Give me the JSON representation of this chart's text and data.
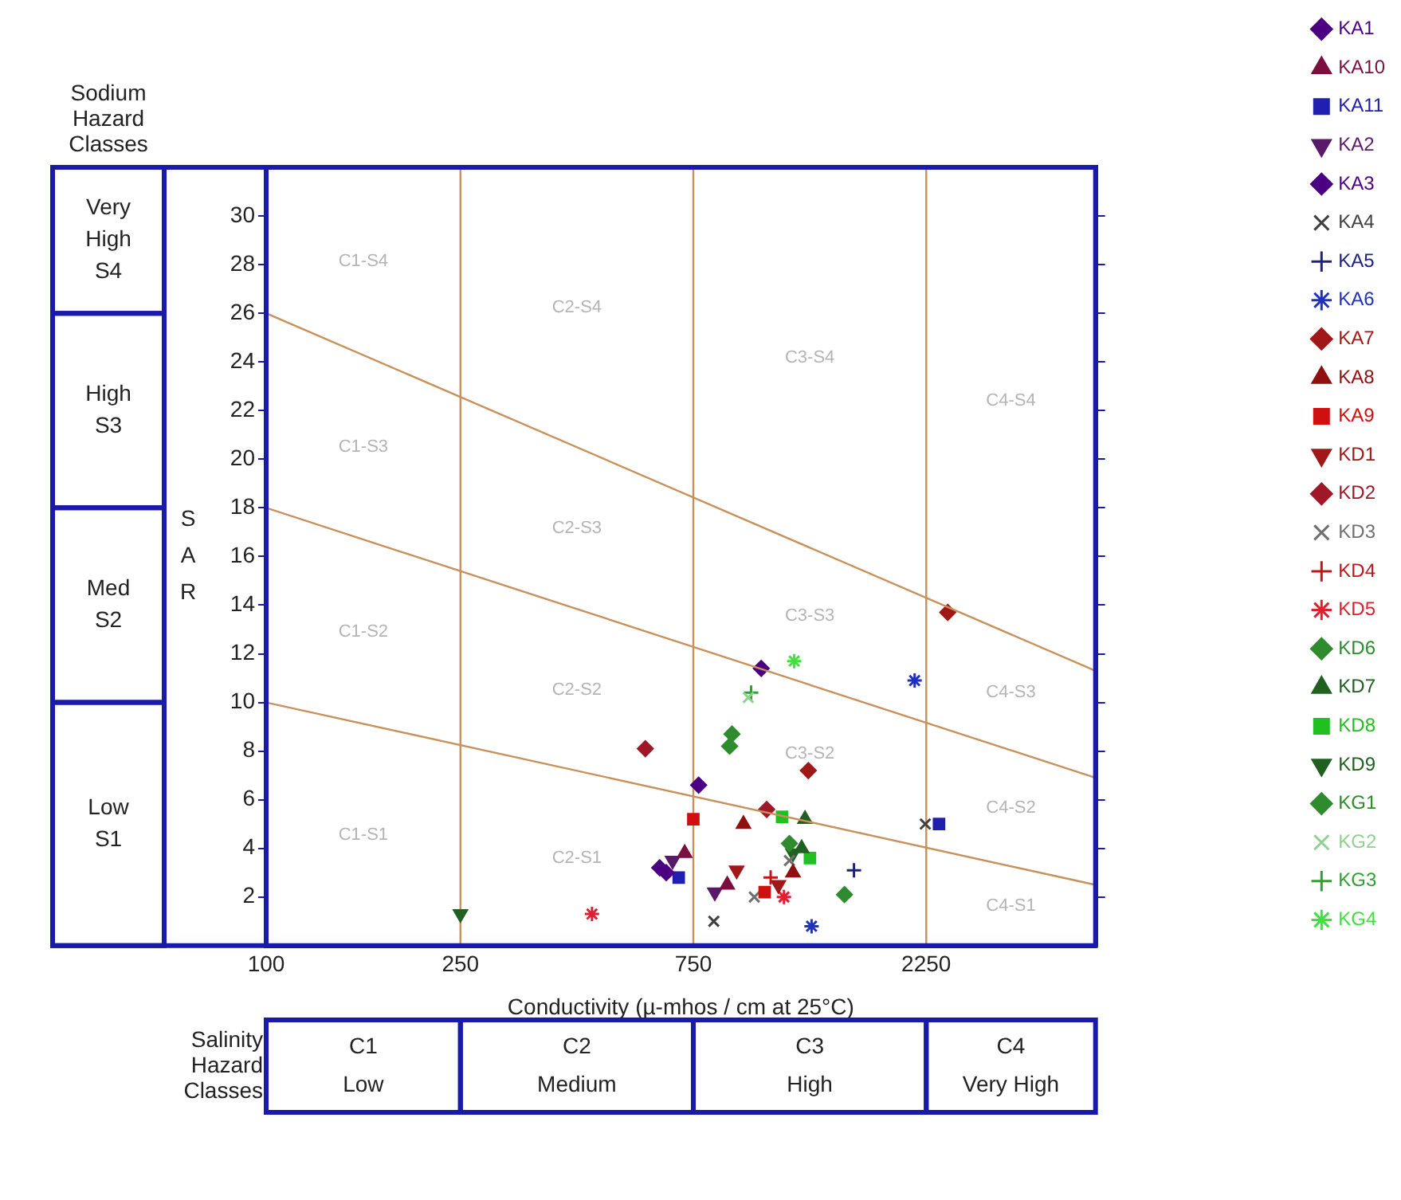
{
  "chart_data": {
    "type": "scatter",
    "xlabel": "Conductivity (µ-mhos / cm at 25°C)",
    "ylabel": "SAR",
    "log": "x",
    "grid": false,
    "legend": "right",
    "xlim": [
      100,
      5000
    ],
    "xticks": [
      100,
      250,
      750,
      2250
    ],
    "ylim": [
      0,
      32
    ],
    "yticks": [
      2,
      4,
      6,
      8,
      10,
      12,
      14,
      16,
      18,
      20,
      22,
      24,
      26,
      28,
      30
    ],
    "ref_lines": [
      {
        "axis": "x",
        "value": 250,
        "color": "#c8905a"
      },
      {
        "axis": "x",
        "value": 750,
        "color": "#c8905a"
      },
      {
        "axis": "x",
        "value": 2250,
        "color": "#c8905a"
      }
    ],
    "annotations": [
      "Sodium\nHazard\nClasses",
      "Salinity\nHazard\nClasses",
      "Very\nHigh\nS4",
      "High\nS3",
      "Med\nS2",
      "Low\nS1",
      "C1\nLow",
      "C2\nMedium",
      "C3\nHigh",
      "C4\nVery High",
      "C1-S4",
      "C2-S4",
      "C3-S4",
      "C4-S4",
      "C1-S3",
      "C2-S3",
      "C3-S3",
      "C4-S3",
      "C1-S2",
      "C2-S2",
      "C3-S2",
      "C4-S2",
      "C1-S1",
      "C2-S1",
      null,
      "C4-S1"
    ],
    "series": [
      {
        "type": "line",
        "marker": "none",
        "color": "#c8905a",
        "x": [
          100,
          5000
        ],
        "values": [
          26,
          11.3
        ]
      },
      {
        "type": "line",
        "marker": "none",
        "color": "#c8905a",
        "x": [
          100,
          5000
        ],
        "values": [
          18,
          6.9
        ]
      },
      {
        "type": "line",
        "marker": "none",
        "color": "#c8905a",
        "x": [
          100,
          5000
        ],
        "values": [
          10,
          2.5
        ]
      },
      {
        "name": "KA1",
        "marker": "diamond",
        "color": "#4b0082",
        "x": [
          769,
          660
        ],
        "values": [
          6.6,
          3.0
        ]
      },
      {
        "name": "KA10",
        "marker": "triangle",
        "color": "#7b1040",
        "x": [
          720,
          880
        ],
        "values": [
          3.8,
          2.5
        ]
      },
      {
        "name": "KA11",
        "marker": "square",
        "color": "#2020b0",
        "x": [
          2390,
          700
        ],
        "values": [
          5.0,
          2.8
        ]
      },
      {
        "name": "KA2",
        "marker": "triangle-down",
        "color": "#5a1a6a",
        "x": [
          680,
          830
        ],
        "values": [
          3.5,
          2.2
        ]
      },
      {
        "name": "KA3",
        "marker": "diamond",
        "color": "#4b0082",
        "x": [
          1033,
          640
        ],
        "values": [
          11.4,
          3.2
        ]
      },
      {
        "name": "KA4",
        "marker": "cross",
        "color": "#404040",
        "x": [
          2240,
          826
        ],
        "values": [
          5.0,
          1.0
        ]
      },
      {
        "name": "KA5",
        "marker": "plus",
        "color": "#202080",
        "x": [
          1600
        ],
        "values": [
          3.1
        ]
      },
      {
        "name": "KA6",
        "color": "#2030c0",
        "x": [
          1310,
          2130
        ],
        "values": [
          0.8,
          10.9
        ]
      },
      {
        "name": "KA7",
        "marker": "diamond",
        "color": "#a01818",
        "x": [
          2490,
          1290
        ],
        "values": [
          13.7,
          7.2
        ]
      },
      {
        "name": "KA8",
        "marker": "triangle",
        "color": "#901010",
        "x": [
          950,
          1200
        ],
        "values": [
          5.0,
          3.0
        ]
      },
      {
        "name": "KA9",
        "marker": "square",
        "color": "#d01010",
        "x": [
          750,
          1050
        ],
        "values": [
          5.2,
          2.2
        ]
      },
      {
        "name": "KD1",
        "marker": "triangle-down",
        "color": "#a01818",
        "x": [
          920,
          1120
        ],
        "values": [
          3.1,
          2.5
        ]
      },
      {
        "name": "KD2",
        "marker": "diamond",
        "color": "#a01828",
        "x": [
          1060,
          598
        ],
        "values": [
          5.6,
          8.1
        ]
      },
      {
        "name": "KD3",
        "marker": "cross",
        "color": "#707070",
        "x": [
          1000,
          1180
        ],
        "values": [
          2.0,
          3.5
        ]
      },
      {
        "name": "KD4",
        "marker": "plus",
        "color": "#c01818",
        "x": [
          1080
        ],
        "values": [
          2.8
        ]
      },
      {
        "name": "KD5",
        "color": "#e02030",
        "x": [
          465,
          1150
        ],
        "values": [
          1.3,
          2.0
        ]
      },
      {
        "name": "KD6",
        "marker": "diamond",
        "color": "#2e8b2e",
        "x": [
          900,
          1180
        ],
        "values": [
          8.7,
          4.2
        ]
      },
      {
        "name": "KD7",
        "marker": "triangle",
        "color": "#206020",
        "x": [
          1270,
          1250
        ],
        "values": [
          5.2,
          4.0
        ]
      },
      {
        "name": "KD8",
        "marker": "square",
        "color": "#20c020",
        "x": [
          1140,
          1300
        ],
        "values": [
          5.3,
          3.6
        ]
      },
      {
        "name": "KD9",
        "marker": "triangle-down",
        "color": "#206020",
        "x": [
          250,
          1200
        ],
        "values": [
          1.3,
          3.8
        ]
      },
      {
        "name": "KG1",
        "marker": "diamond",
        "color": "#2e8b2e",
        "x": [
          890,
          1530
        ],
        "values": [
          8.2,
          2.1
        ]
      },
      {
        "name": "KG2",
        "marker": "cross",
        "color": "#90d090",
        "x": [
          972
        ],
        "values": [
          10.2
        ]
      },
      {
        "name": "KG3",
        "marker": "plus",
        "color": "#30a030",
        "x": [
          985
        ],
        "values": [
          10.4
        ]
      },
      {
        "name": "KG4",
        "color": "#40e040",
        "x": [
          1207
        ],
        "values": [
          11.7
        ]
      }
    ]
  }
}
